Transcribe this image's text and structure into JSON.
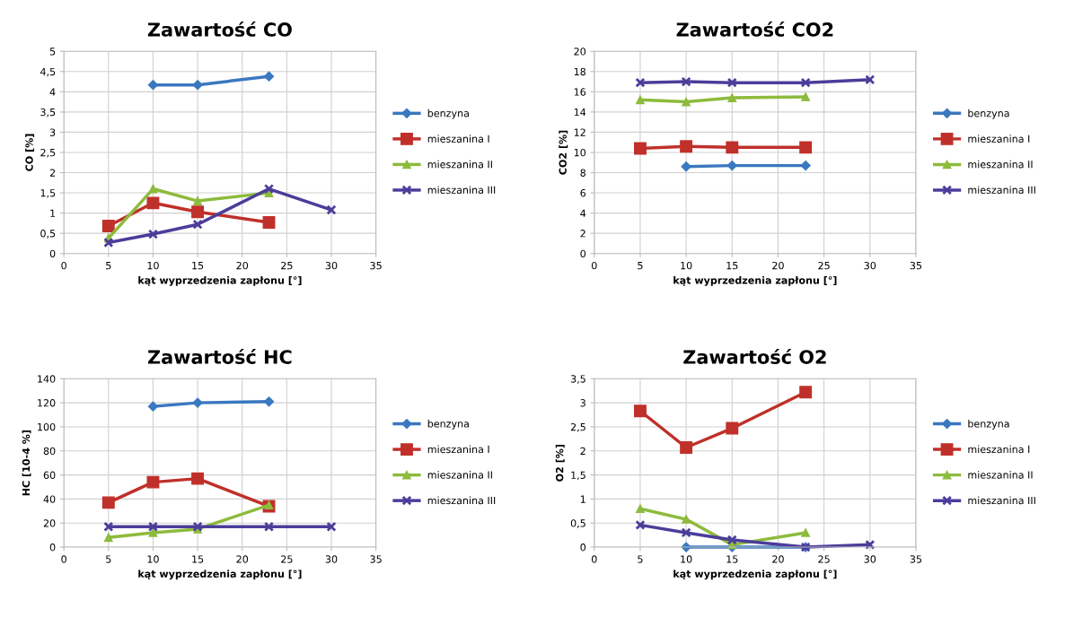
{
  "chart_data": [
    {
      "type": "line",
      "title": "Zawartość CO",
      "xlabel": "kąt wyprzedzenia zapłonu [°]",
      "ylabel": "CO [%]",
      "xlim": [
        0,
        35
      ],
      "xticks": [
        0,
        5,
        10,
        15,
        20,
        25,
        30,
        35
      ],
      "ylim": [
        0,
        5
      ],
      "yticks": [
        0,
        {
          "value": 0.5,
          "label": "0,5"
        },
        1,
        {
          "value": 1.5,
          "label": "1,5"
        },
        2,
        {
          "value": 2.5,
          "label": "2,5"
        },
        3,
        {
          "value": 3.5,
          "label": "3,5"
        },
        4,
        {
          "value": 4.5,
          "label": "4,5"
        },
        5
      ],
      "grid": true,
      "legend": "right",
      "series": [
        {
          "name": "benzyna",
          "color": "#3a78c0",
          "marker": "diamond",
          "x": [
            10,
            15,
            23
          ],
          "values": [
            4.17,
            4.17,
            4.38
          ]
        },
        {
          "name": "mieszanina I",
          "color": "#c0302a",
          "marker": "square",
          "x": [
            5,
            10,
            15,
            23
          ],
          "values": [
            0.68,
            1.25,
            1.03,
            0.77
          ]
        },
        {
          "name": "mieszanina II",
          "color": "#8dbb3c",
          "marker": "triangle",
          "x": [
            5,
            10,
            15,
            23
          ],
          "values": [
            0.38,
            1.6,
            1.3,
            1.5
          ]
        },
        {
          "name": "mieszanina III",
          "color": "#4b3d9a",
          "marker": "cross",
          "x": [
            5,
            10,
            15,
            23,
            30
          ],
          "values": [
            0.27,
            0.48,
            0.72,
            1.6,
            1.08
          ]
        }
      ]
    },
    {
      "type": "line",
      "title": "Zawartość CO2",
      "xlabel": "kąt wyprzedzenia zapłonu [°]",
      "ylabel": "CO2 [%]",
      "xlim": [
        0,
        35
      ],
      "xticks": [
        0,
        5,
        10,
        15,
        20,
        25,
        30,
        35
      ],
      "ylim": [
        0,
        20
      ],
      "yticks": [
        0,
        2,
        4,
        6,
        8,
        10,
        12,
        14,
        16,
        18,
        20
      ],
      "grid": true,
      "legend": "right",
      "series": [
        {
          "name": "benzyna",
          "color": "#3a78c0",
          "marker": "diamond",
          "x": [
            10,
            15,
            23
          ],
          "values": [
            8.6,
            8.7,
            8.7
          ]
        },
        {
          "name": "mieszanina I",
          "color": "#c0302a",
          "marker": "square",
          "x": [
            5,
            10,
            15,
            23
          ],
          "values": [
            10.4,
            10.6,
            10.5,
            10.5
          ]
        },
        {
          "name": "mieszanina II",
          "color": "#8dbb3c",
          "marker": "triangle",
          "x": [
            5,
            10,
            15,
            23
          ],
          "values": [
            15.2,
            15.0,
            15.4,
            15.5
          ]
        },
        {
          "name": "mieszanina III",
          "color": "#4b3d9a",
          "marker": "cross",
          "x": [
            5,
            10,
            15,
            23,
            30
          ],
          "values": [
            16.9,
            17.0,
            16.9,
            16.9,
            17.2
          ]
        }
      ]
    },
    {
      "type": "line",
      "title": "Zawartość HC",
      "xlabel": "kąt wyprzedzenia zapłonu [°]",
      "ylabel": "HC [10-4 %]",
      "xlim": [
        0,
        35
      ],
      "xticks": [
        0,
        5,
        10,
        15,
        20,
        25,
        30,
        35
      ],
      "ylim": [
        0,
        140
      ],
      "yticks": [
        0,
        20,
        40,
        60,
        80,
        100,
        120,
        140
      ],
      "grid": true,
      "legend": "right",
      "series": [
        {
          "name": "benzyna",
          "color": "#3a78c0",
          "marker": "diamond",
          "x": [
            10,
            15,
            23
          ],
          "values": [
            117,
            120,
            121
          ]
        },
        {
          "name": "mieszanina I",
          "color": "#c0302a",
          "marker": "square",
          "x": [
            5,
            10,
            15,
            23
          ],
          "values": [
            37,
            54,
            57,
            34
          ]
        },
        {
          "name": "mieszanina II",
          "color": "#8dbb3c",
          "marker": "triangle",
          "x": [
            5,
            10,
            15,
            23
          ],
          "values": [
            8,
            12,
            15,
            35
          ]
        },
        {
          "name": "mieszanina III",
          "color": "#4b3d9a",
          "marker": "cross",
          "x": [
            5,
            10,
            15,
            23,
            30
          ],
          "values": [
            17,
            17,
            17,
            17,
            17
          ]
        }
      ]
    },
    {
      "type": "line",
      "title": "Zawartość O2",
      "xlabel": "kąt wyprzedzenia zapłonu [°]",
      "ylabel": "O2 [%]",
      "xlim": [
        0,
        35
      ],
      "xticks": [
        0,
        5,
        10,
        15,
        20,
        25,
        30,
        35
      ],
      "ylim": [
        0,
        3.5
      ],
      "yticks": [
        0,
        {
          "value": 0.5,
          "label": "0,5"
        },
        1,
        {
          "value": 1.5,
          "label": "1,5"
        },
        2,
        {
          "value": 2.5,
          "label": "2,5"
        },
        3,
        {
          "value": 3.5,
          "label": "3,5"
        }
      ],
      "grid": true,
      "legend": "right",
      "series": [
        {
          "name": "benzyna",
          "color": "#3a78c0",
          "marker": "diamond",
          "x": [
            10,
            15,
            23
          ],
          "values": [
            0,
            0,
            0
          ]
        },
        {
          "name": "mieszanina I",
          "color": "#c0302a",
          "marker": "square",
          "x": [
            5,
            10,
            15,
            23
          ],
          "values": [
            2.83,
            2.07,
            2.47,
            3.22
          ]
        },
        {
          "name": "mieszanina II",
          "color": "#8dbb3c",
          "marker": "triangle",
          "x": [
            5,
            10,
            15,
            23
          ],
          "values": [
            0.8,
            0.58,
            0.05,
            0.3
          ]
        },
        {
          "name": "mieszanina III",
          "color": "#4b3d9a",
          "marker": "cross",
          "x": [
            5,
            10,
            15,
            23,
            30
          ],
          "values": [
            0.46,
            0.3,
            0.15,
            0,
            0.05
          ]
        }
      ]
    }
  ]
}
